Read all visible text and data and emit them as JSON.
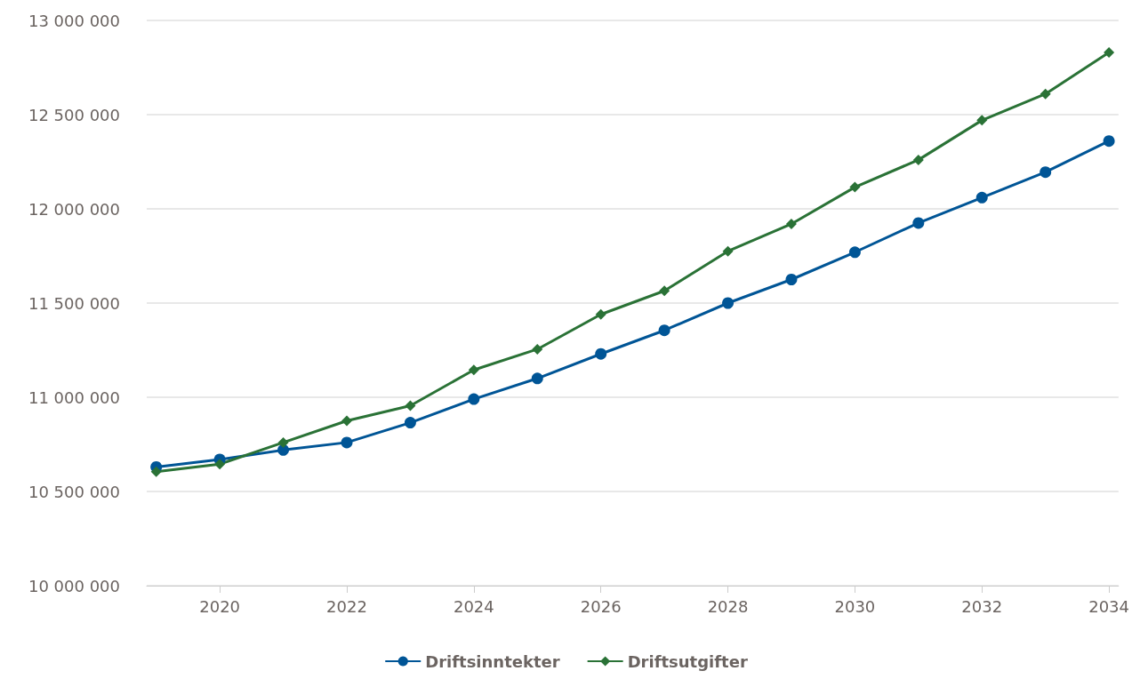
{
  "chart_data": {
    "type": "line",
    "x": [
      2019,
      2020,
      2021,
      2022,
      2023,
      2024,
      2025,
      2026,
      2027,
      2028,
      2029,
      2030,
      2031,
      2032,
      2033,
      2034
    ],
    "series": [
      {
        "name": "Driftsinntekter",
        "color": "#005596",
        "marker": "circle",
        "values": [
          10630000,
          10670000,
          10720000,
          10760000,
          10865000,
          10990000,
          11100000,
          11230000,
          11355000,
          11500000,
          11625000,
          11770000,
          11925000,
          12060000,
          12195000,
          12360000
        ]
      },
      {
        "name": "Driftsutgifter",
        "color": "#2a7236",
        "marker": "diamond",
        "values": [
          10605000,
          10645000,
          10760000,
          10875000,
          10955000,
          11145000,
          11255000,
          11440000,
          11565000,
          11775000,
          11920000,
          12115000,
          12260000,
          12470000,
          12610000,
          12830000
        ]
      }
    ],
    "xlim": [
      2018.85,
      2034.15
    ],
    "xticks": [
      2020,
      2022,
      2024,
      2026,
      2028,
      2030,
      2032,
      2034
    ],
    "ylim": [
      10000000,
      13000000
    ],
    "yticks": [
      {
        "value": 10000000,
        "label": "10 000 000"
      },
      {
        "value": 10500000,
        "label": "10 500 000"
      },
      {
        "value": 11000000,
        "label": "11 000 000"
      },
      {
        "value": 11500000,
        "label": "11 500 000"
      },
      {
        "value": 12000000,
        "label": "12 000 000"
      },
      {
        "value": 12500000,
        "label": "12 500 000"
      },
      {
        "value": 13000000,
        "label": "13 000 000"
      }
    ],
    "grid": "y",
    "legend": "bottom",
    "line_style": "solid"
  }
}
